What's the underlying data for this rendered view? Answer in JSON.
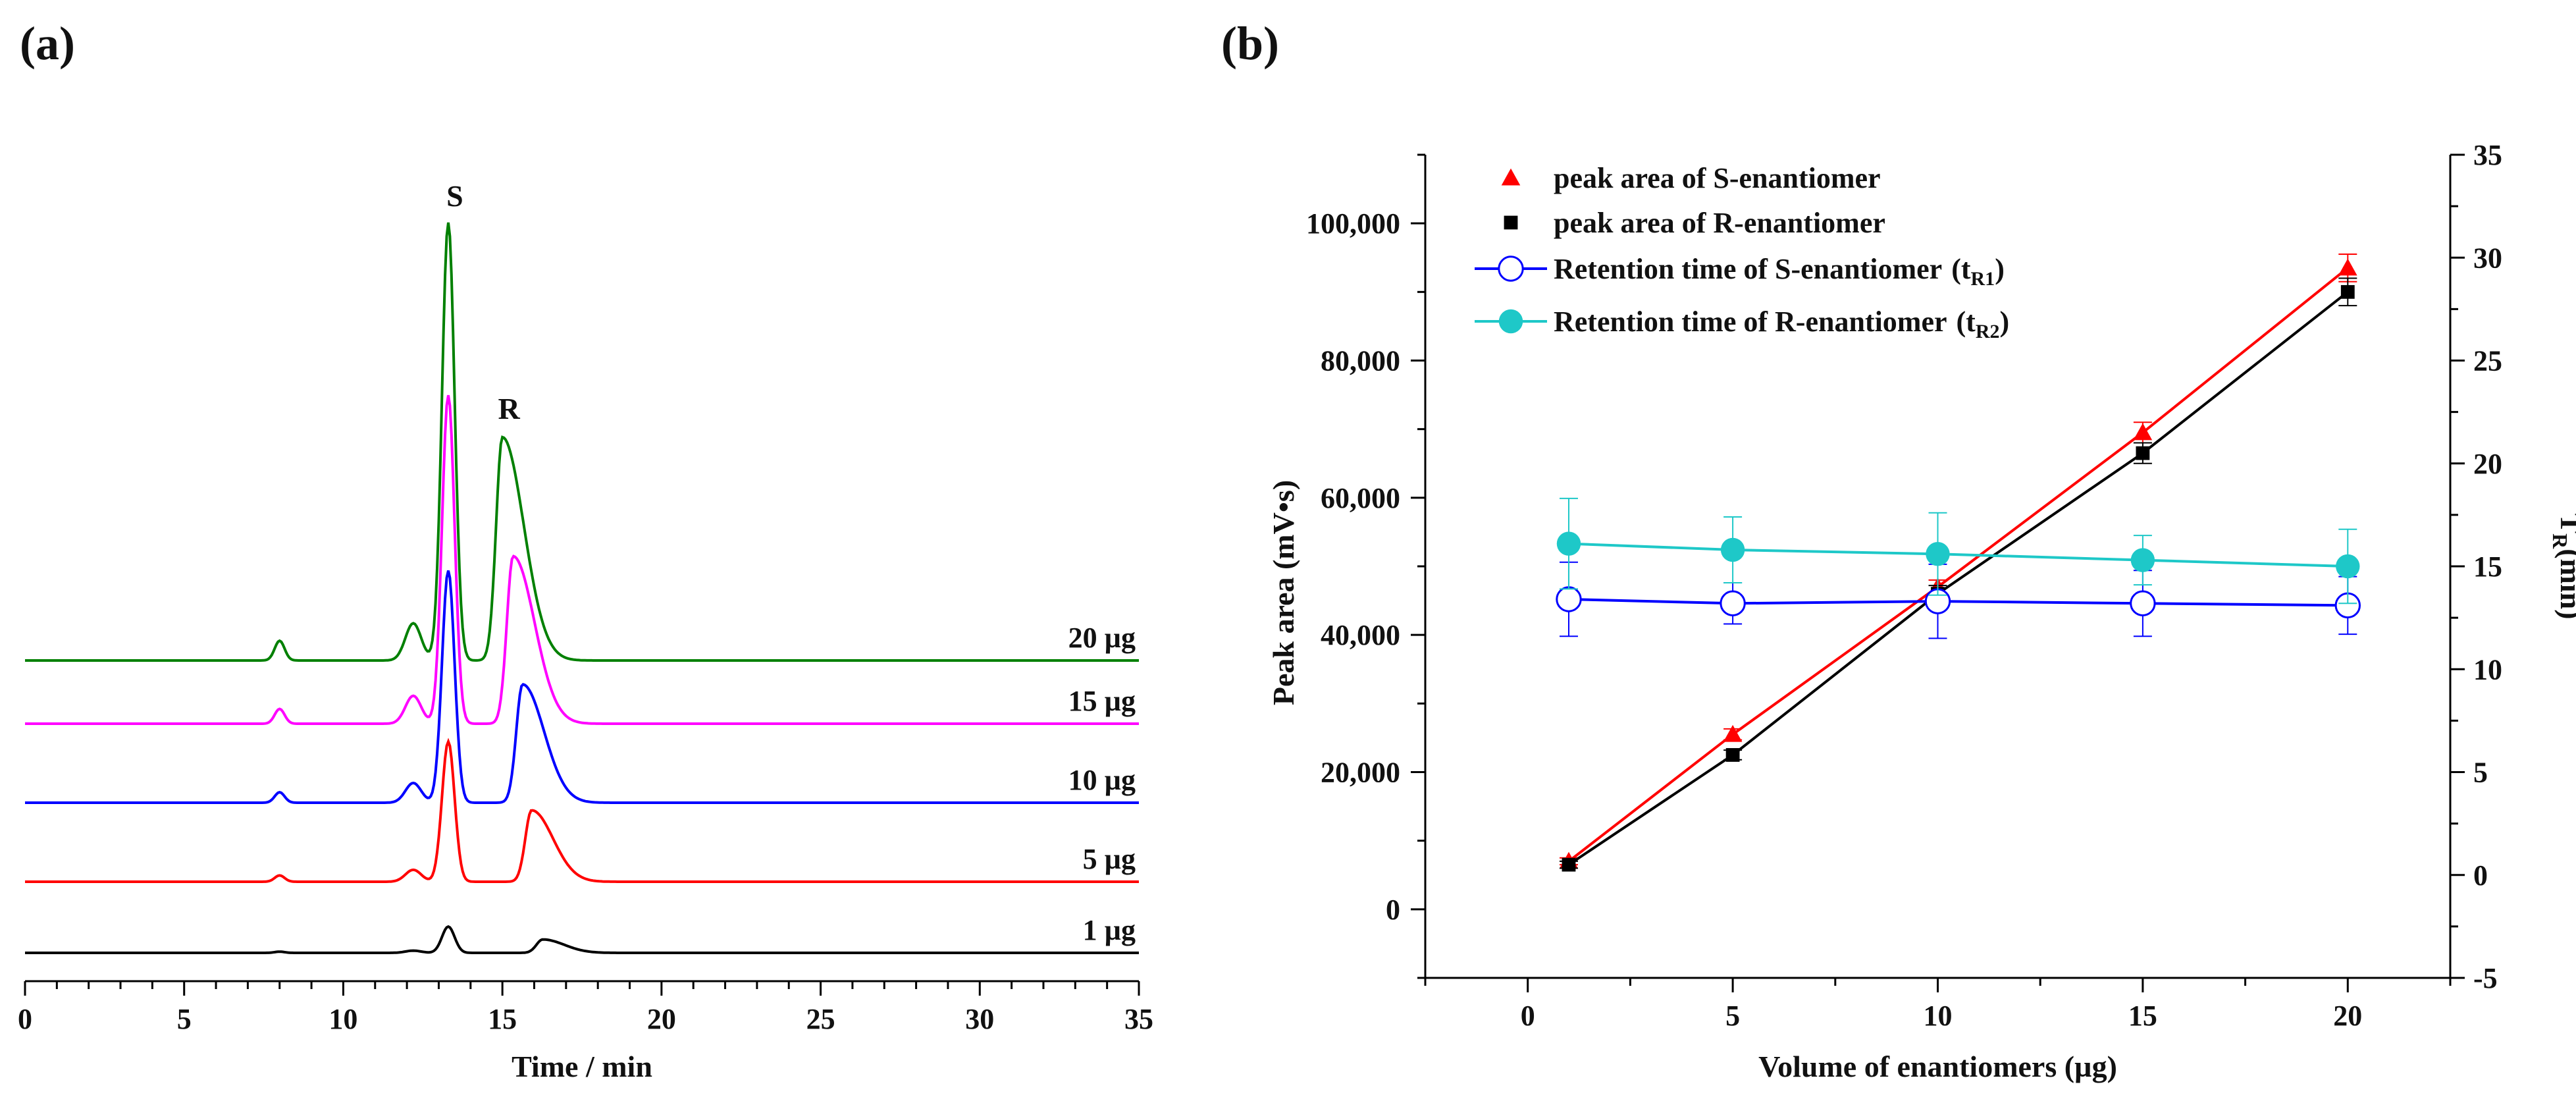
{
  "panels": {
    "a": "(a)",
    "b": "(b)"
  },
  "chart_data": [
    {
      "type": "line",
      "panel": "(a)",
      "title": "",
      "xlabel": "Time / min",
      "ylabel": "",
      "xlim": [
        0,
        35
      ],
      "xticks": [
        0,
        5,
        10,
        15,
        20,
        25,
        30,
        35
      ],
      "peak_labels": [
        {
          "text": "S",
          "x": 13.3
        },
        {
          "text": "R",
          "x": 15.0
        }
      ],
      "series": [
        {
          "name": "1 µg",
          "color": "#000000",
          "baseline": 0.0,
          "scale": 0.06
        },
        {
          "name": "5 µg",
          "color": "#ff0000",
          "baseline": 0.9,
          "scale": 0.32
        },
        {
          "name": "10 µg",
          "color": "#0000ff",
          "baseline": 1.9,
          "scale": 0.53
        },
        {
          "name": "15 µg",
          "color": "#ff00ff",
          "baseline": 2.9,
          "scale": 0.75
        },
        {
          "name": "20 µg",
          "color": "#008000",
          "baseline": 3.7,
          "scale": 1.0
        }
      ]
    },
    {
      "type": "scatter",
      "panel": "(b)",
      "title": "",
      "xlabel": "Volume of enantiomers (µg)",
      "ylabel": "Peak area (mV•s)",
      "y2label": "T",
      "y2label_sub": "R",
      "y2label_suffix": "(min)",
      "xlim": [
        -2.5,
        22.5
      ],
      "ylim": [
        -10000,
        110000
      ],
      "y2lim": [
        -5,
        35
      ],
      "xticks": [
        0,
        5,
        10,
        15,
        20
      ],
      "yticks": [
        0,
        20000,
        40000,
        60000,
        80000,
        100000
      ],
      "ytick_labels": [
        "0",
        "20,000",
        "40,000",
        "60,000",
        "80,000",
        "100,000"
      ],
      "y2ticks": [
        -5,
        0,
        5,
        10,
        15,
        20,
        25,
        30,
        35
      ],
      "legend_position": "top-left",
      "series": [
        {
          "name": "peak area of S-enantiomer",
          "axis": "left",
          "marker": "triangle",
          "color": "#ff0000",
          "x": [
            1,
            5,
            10,
            15,
            20
          ],
          "y": [
            7000,
            25500,
            47000,
            69500,
            93500
          ],
          "err": [
            500,
            800,
            1000,
            1500,
            2000
          ]
        },
        {
          "name": "peak area of R-enantiomer",
          "axis": "left",
          "marker": "square",
          "color": "#000000",
          "x": [
            1,
            5,
            10,
            15,
            20
          ],
          "y": [
            6500,
            22500,
            46000,
            66500,
            90000
          ],
          "err": [
            500,
            700,
            1200,
            1500,
            2000
          ]
        },
        {
          "name": "Retention time of S-enantiomer",
          "name_paren": "(t",
          "name_sub": "R1",
          "name_close": ")",
          "axis": "right",
          "marker": "open-circle",
          "color": "#0000ff",
          "x": [
            1,
            5,
            10,
            15,
            20
          ],
          "y": [
            13.4,
            13.2,
            13.3,
            13.2,
            13.1
          ],
          "err": [
            1.8,
            1.0,
            1.8,
            1.6,
            1.4
          ]
        },
        {
          "name": "Retention time of R-enantiomer",
          "name_paren": "(t",
          "name_sub": "R2",
          "name_close": ")",
          "axis": "right",
          "marker": "filled-circle",
          "color": "#1ec8c8",
          "x": [
            1,
            5,
            10,
            15,
            20
          ],
          "y": [
            16.1,
            15.8,
            15.6,
            15.3,
            15.0
          ],
          "err": [
            2.2,
            1.6,
            2.0,
            1.2,
            1.8
          ]
        }
      ]
    }
  ]
}
